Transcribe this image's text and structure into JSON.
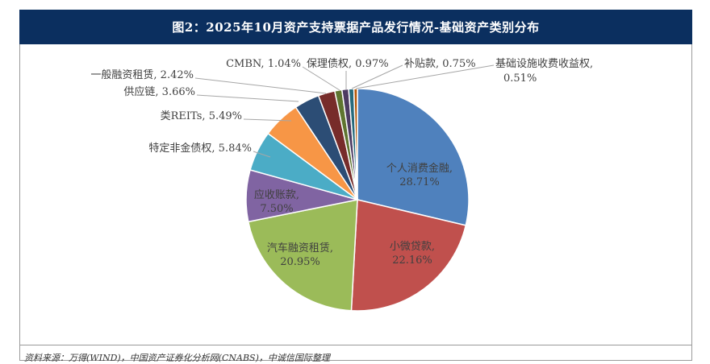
{
  "title": "图2：2025年10月资产支持票据产品发行情况-基础资产类别分布",
  "source": "资料来源：万得(WIND)，中国资产证券化分析网(CNABS)，中诚信国际整理",
  "chart_data": {
    "type": "pie",
    "title": "图2：2025年10月资产支持票据产品发行情况-基础资产类别分布",
    "slices": [
      {
        "label": "个人消费金融",
        "value": 28.71,
        "display": "28.71%",
        "color": "#4f81bd"
      },
      {
        "label": "小微贷款",
        "value": 22.16,
        "display": "22.16%",
        "color": "#c0504d"
      },
      {
        "label": "汽车融资租赁",
        "value": 20.95,
        "display": "20.95%",
        "color": "#9bbb59"
      },
      {
        "label": "应收账款",
        "value": 7.5,
        "display": "7.50%",
        "color": "#8064a2"
      },
      {
        "label": "特定非金债权",
        "value": 5.84,
        "display": "5.84%",
        "color": "#4bacc6"
      },
      {
        "label": "类REITs",
        "value": 5.49,
        "display": "5.49%",
        "color": "#f79646"
      },
      {
        "label": "供应链",
        "value": 3.66,
        "display": "3.66%",
        "color": "#2c4d75"
      },
      {
        "label": "一般融资租赁",
        "value": 2.42,
        "display": "2.42%",
        "color": "#772c2a"
      },
      {
        "label": "CMBN",
        "value": 1.04,
        "display": "1.04%",
        "color": "#5f7530"
      },
      {
        "label": "保理债权",
        "value": 0.97,
        "display": "0.97%",
        "color": "#4d3b62"
      },
      {
        "label": "补贴款",
        "value": 0.75,
        "display": "0.75%",
        "color": "#276a7c"
      },
      {
        "label": "基础设施收费收益权",
        "value": 0.51,
        "display": "0.51%",
        "color": "#b65708"
      }
    ]
  }
}
